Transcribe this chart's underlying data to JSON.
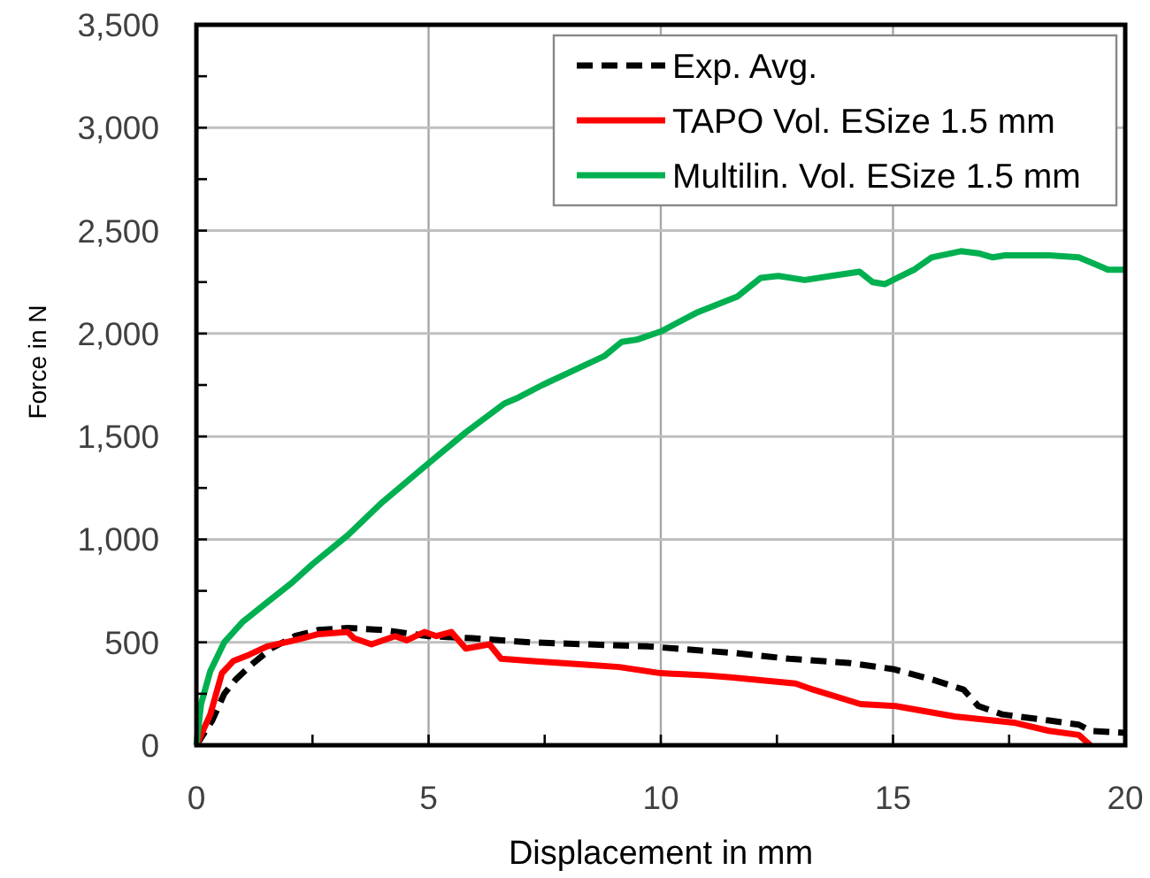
{
  "chart_data": {
    "type": "line",
    "xlabel": "Displacement in mm",
    "ylabel": "Force in N",
    "xlim": [
      0,
      20
    ],
    "xticks": [
      0,
      {
        "value": 2.5,
        "label": null
      },
      5,
      {
        "value": 7.5,
        "label": null
      },
      10,
      {
        "value": 12.5,
        "label": null
      },
      15,
      {
        "value": 17.5,
        "label": null
      },
      20
    ],
    "ylim": [
      0,
      3500
    ],
    "yticks": [
      0,
      {
        "value": 250,
        "label": null
      },
      500,
      {
        "value": 750,
        "label": null
      },
      {
        "value": 1000,
        "label": "1,000"
      },
      {
        "value": 1250,
        "label": null
      },
      {
        "value": 1500,
        "label": "1,500"
      },
      {
        "value": 1750,
        "label": null
      },
      {
        "value": 2000,
        "label": "2,000"
      },
      {
        "value": 2250,
        "label": null
      },
      {
        "value": 2500,
        "label": "2,500"
      },
      {
        "value": 2750,
        "label": null
      },
      {
        "value": 3000,
        "label": "3,000"
      },
      {
        "value": 3250,
        "label": null
      },
      {
        "value": 3500,
        "label": "3,500"
      }
    ],
    "grid": true,
    "legend": "top right",
    "series": [
      {
        "name": "Exp. Avg.",
        "color": "#000000",
        "line_style": "dashed",
        "x": [
          0,
          0.34,
          0.6,
          0.85,
          1.23,
          1.61,
          2.12,
          2.63,
          3.26,
          4.02,
          5,
          5.93,
          7.19,
          8.46,
          9.73,
          10.87,
          11.5,
          12.77,
          14.04,
          15,
          15.83,
          16.52,
          16.84,
          17.35,
          18.36,
          19.0,
          19.25,
          20
        ],
        "values": [
          0,
          120,
          250,
          320,
          400,
          470,
          530,
          560,
          570,
          560,
          530,
          520,
          500,
          490,
          480,
          460,
          450,
          420,
          400,
          370,
          320,
          270,
          190,
          150,
          120,
          100,
          70,
          60
        ]
      },
      {
        "name": "TAPO Vol. ESize 1.5 mm",
        "color": "#ff0000",
        "line_style": "solid",
        "x": [
          0,
          0.3,
          0.55,
          0.8,
          1.14,
          1.52,
          2.12,
          2.63,
          3.26,
          3.39,
          3.77,
          4.28,
          4.53,
          4.91,
          5.17,
          5.49,
          5.8,
          6.31,
          6.56,
          7.19,
          8.46,
          9.1,
          10,
          10.95,
          11.5,
          12.9,
          13.28,
          14.3,
          15.06,
          16.33,
          17.6,
          18.36,
          19.0,
          19.25
        ],
        "values": [
          0,
          150,
          350,
          410,
          440,
          480,
          510,
          540,
          550,
          520,
          490,
          530,
          510,
          550,
          530,
          550,
          470,
          490,
          420,
          410,
          390,
          380,
          350,
          340,
          330,
          300,
          270,
          200,
          190,
          140,
          110,
          70,
          50,
          0
        ]
      },
      {
        "name": "Multilin. Vol. ESize 1.5 mm",
        "color": "#00b050",
        "line_style": "solid",
        "x": [
          0,
          0.1,
          0.3,
          0.6,
          1.0,
          1.5,
          2.06,
          2.5,
          3.26,
          4,
          5,
          5.8,
          6.63,
          6.94,
          7.45,
          8.21,
          8.78,
          9.16,
          9.48,
          10,
          10.76,
          11.65,
          12.15,
          12.53,
          13.1,
          13.67,
          14.28,
          14.56,
          14.82,
          15.45,
          15.83,
          16.46,
          16.84,
          17.15,
          17.41,
          18.36,
          19.0,
          19.32,
          19.63,
          20
        ],
        "values": [
          0,
          200,
          360,
          500,
          600,
          690,
          790,
          880,
          1020,
          1180,
          1370,
          1520,
          1660,
          1690,
          1750,
          1830,
          1890,
          1960,
          1970,
          2010,
          2100,
          2180,
          2270,
          2280,
          2260,
          2280,
          2300,
          2250,
          2240,
          2310,
          2370,
          2400,
          2390,
          2370,
          2380,
          2380,
          2370,
          2340,
          2310,
          2310
        ]
      }
    ]
  }
}
